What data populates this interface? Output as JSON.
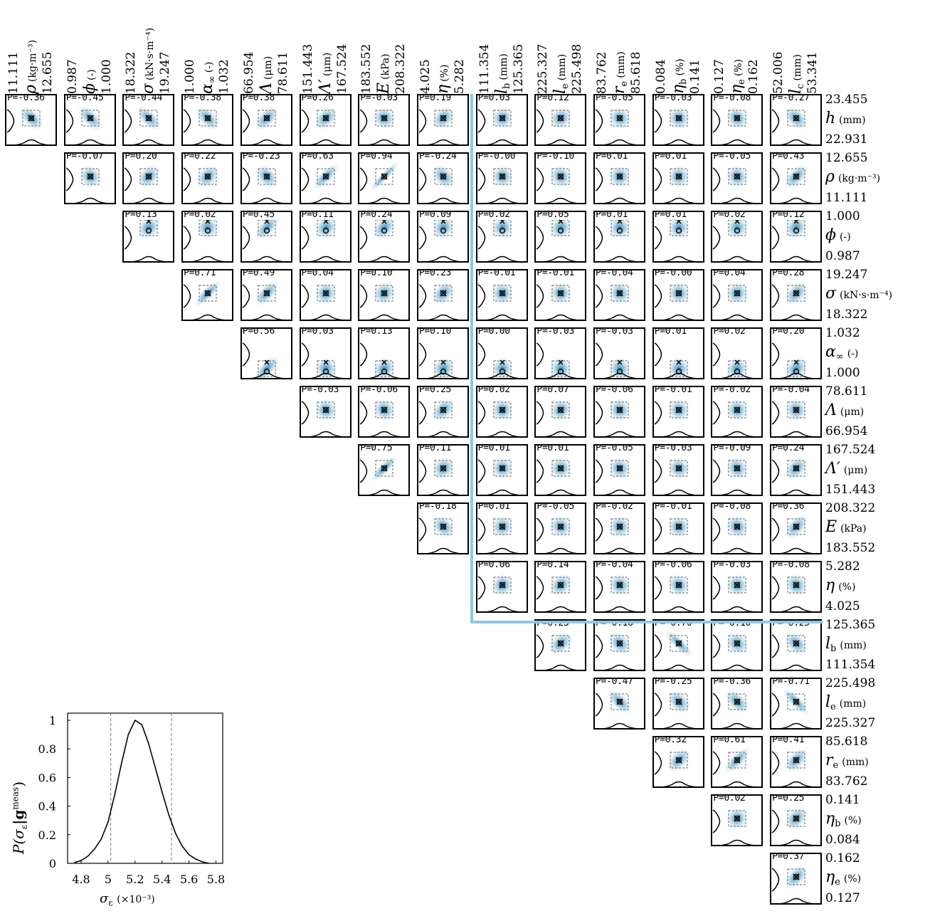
{
  "parameters": [
    {
      "key": "h",
      "symbol": "h",
      "sub": "",
      "unit": "(mm)",
      "min": "22.931",
      "max": "23.455"
    },
    {
      "key": "rho",
      "symbol": "ρ",
      "sub": "",
      "unit": "(kg·m⁻³)",
      "min": "11.111",
      "max": "12.655"
    },
    {
      "key": "phi",
      "symbol": "ϕ",
      "sub": "",
      "unit": "(-)",
      "min": "0.987",
      "max": "1.000"
    },
    {
      "key": "sigma",
      "symbol": "σ",
      "sub": "",
      "unit": "(kN·s·m⁻⁴)",
      "min": "18.322",
      "max": "19.247"
    },
    {
      "key": "alpha",
      "symbol": "α",
      "sub": "∞",
      "unit": "(-)",
      "min": "1.000",
      "max": "1.032"
    },
    {
      "key": "Lambda",
      "symbol": "Λ",
      "sub": "",
      "unit": "(μm)",
      "min": "66.954",
      "max": "78.611"
    },
    {
      "key": "LambdaP",
      "symbol": "Λ′",
      "sub": "",
      "unit": "(μm)",
      "min": "151.443",
      "max": "167.524"
    },
    {
      "key": "E",
      "symbol": "E",
      "sub": "",
      "unit": "(kPa)",
      "min": "183.552",
      "max": "208.322"
    },
    {
      "key": "eta",
      "symbol": "η",
      "sub": "",
      "unit": "(%)",
      "min": "4.025",
      "max": "5.282"
    },
    {
      "key": "lb",
      "symbol": "l",
      "sub": "b",
      "unit": "(mm)",
      "min": "111.354",
      "max": "125.365"
    },
    {
      "key": "le",
      "symbol": "l",
      "sub": "e",
      "unit": "(mm)",
      "min": "225.327",
      "max": "225.498"
    },
    {
      "key": "re",
      "symbol": "r",
      "sub": "e",
      "unit": "(mm)",
      "min": "83.762",
      "max": "85.618"
    },
    {
      "key": "etab",
      "symbol": "η",
      "sub": "b",
      "unit": "(%)",
      "min": "0.084",
      "max": "0.141"
    },
    {
      "key": "etae",
      "symbol": "η",
      "sub": "e",
      "unit": "(%)",
      "min": "0.127",
      "max": "0.162"
    },
    {
      "key": "lc",
      "symbol": "l",
      "sub": "c",
      "unit": "(mm)",
      "min": "52.006",
      "max": "53.341"
    }
  ],
  "chart_data": [
    {
      "type": "heatmap",
      "layout": "upper-triangular pairwise posterior matrix",
      "correlations": [
        [
          "-0.36",
          "-0.45",
          "-0.44",
          "-0.38",
          "0.38",
          "0.26",
          "-0.03",
          "0.19",
          "0.03",
          "0.12",
          "-0.05",
          "-0.03",
          "-0.08",
          "-0.27"
        ],
        [
          "-0.07",
          "0.20",
          "0.22",
          "-0.23",
          "0.63",
          "0.94",
          "-0.24",
          "-0.00",
          "-0.10",
          "0.01",
          "0.01",
          "-0.05",
          "0.43"
        ],
        [
          "0.13",
          "0.02",
          "0.45",
          "0.11",
          "0.24",
          "0.09",
          "0.02",
          "0.05",
          "0.01",
          "0.01",
          "0.02",
          "0.12"
        ],
        [
          "0.71",
          "0.49",
          "0.04",
          "0.10",
          "0.23",
          "-0.01",
          "-0.01",
          "-0.04",
          "-0.00",
          "0.04",
          "0.28"
        ],
        [
          "0.56",
          "0.03",
          "0.13",
          "0.10",
          "0.00",
          "-0.03",
          "-0.03",
          "0.01",
          "0.02",
          "0.20"
        ],
        [
          "-0.03",
          "-0.06",
          "0.25",
          "0.02",
          "0.07",
          "-0.06",
          "-0.01",
          "-0.02",
          "-0.04"
        ],
        [
          "0.75",
          "0.11",
          "0.01",
          "0.01",
          "-0.05",
          "-0.03",
          "-0.09",
          "0.24"
        ],
        [
          "-0.18",
          "0.01",
          "-0.05",
          "-0.02",
          "-0.01",
          "-0.08",
          "0.36"
        ],
        [
          "0.06",
          "0.14",
          "-0.04",
          "-0.06",
          "-0.03",
          "-0.08"
        ],
        [
          "0.23",
          "-0.18",
          "-0.70",
          "-0.10",
          "-0.25"
        ],
        [
          "-0.47",
          "-0.25",
          "-0.36",
          "-0.71"
        ],
        [
          "0.32",
          "0.61",
          "0.41"
        ],
        [
          "0.02",
          "0.25"
        ],
        [
          "0.37"
        ]
      ],
      "correlation_prefix": "P="
    },
    {
      "type": "line",
      "xlabel": "σ",
      "xlabel_sub": "ε",
      "xlabel_unit": "(×10⁻³)",
      "ylabel": "P(σ",
      "ylabel_sub": "ε",
      "ylabel_rest": "|g",
      "ylabel_sup": "meas",
      "xlim": [
        4.7,
        5.85
      ],
      "ylim": [
        0,
        1.05
      ],
      "xticks": [
        "4.8",
        "5",
        "5.2",
        "5.4",
        "5.6",
        "5.8"
      ],
      "yticks": [
        "0",
        "0.2",
        "0.4",
        "0.6",
        "0.8",
        "1"
      ],
      "vlines": [
        5.02,
        5.47
      ],
      "x": [
        4.75,
        4.8,
        4.85,
        4.9,
        4.95,
        5.0,
        5.05,
        5.1,
        5.15,
        5.2,
        5.25,
        5.3,
        5.35,
        5.4,
        5.45,
        5.5,
        5.55,
        5.6,
        5.65,
        5.7,
        5.75
      ],
      "y": [
        0.005,
        0.02,
        0.05,
        0.1,
        0.17,
        0.29,
        0.48,
        0.7,
        0.9,
        1.0,
        0.97,
        0.84,
        0.67,
        0.5,
        0.34,
        0.21,
        0.12,
        0.06,
        0.03,
        0.01,
        0.0
      ]
    }
  ]
}
